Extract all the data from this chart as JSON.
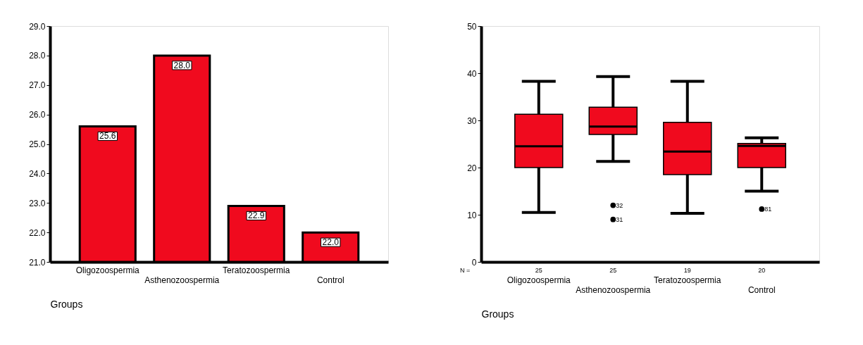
{
  "chart_data": [
    {
      "type": "bar",
      "xlabel": "Groups",
      "categories": [
        "Oligozoospermia",
        "Asthenozoospermia",
        "Teratozoospermia",
        "Control"
      ],
      "values": [
        25.6,
        28.0,
        22.9,
        22.0
      ],
      "color": "#f00a1e",
      "value_labels": [
        "25.6",
        "28.0",
        "22.9",
        "22.0"
      ],
      "ylim": [
        21,
        29
      ],
      "yticks": [
        {
          "value": 21,
          "label": "21.0"
        },
        {
          "value": 22,
          "label": "22.0"
        },
        {
          "value": 23,
          "label": "23.0"
        },
        {
          "value": 24,
          "label": "24.0"
        },
        {
          "value": 25,
          "label": "25.0"
        },
        {
          "value": 26,
          "label": "26.0"
        },
        {
          "value": 27,
          "label": "27.0"
        },
        {
          "value": 28,
          "label": "28.0"
        },
        {
          "value": 29,
          "label": "29.0"
        }
      ],
      "grid": false
    },
    {
      "type": "box",
      "xlabel": "Groups",
      "categories": [
        "Oligozoospermia",
        "Asthenozoospermia",
        "Teratozoospermia",
        "Control"
      ],
      "color": "#f00a1e",
      "boxes": [
        {
          "low": 10.5,
          "q1": 20.0,
          "median": 24.5,
          "q3": 31.3,
          "high": 38.3
        },
        {
          "low": 21.3,
          "q1": 27.0,
          "median": 28.7,
          "q3": 32.8,
          "high": 39.3,
          "outliers": [
            12.0,
            9.0
          ]
        },
        {
          "low": 10.3,
          "q1": 18.5,
          "median": 23.4,
          "q3": 29.6,
          "high": 38.3
        },
        {
          "low": 15.0,
          "q1": 20.0,
          "median": 24.6,
          "q3": 25.1,
          "high": 26.3,
          "outliers": [
            11.2
          ]
        }
      ],
      "ylim": [
        0,
        50
      ],
      "yticks": [
        0,
        10,
        20,
        30,
        40,
        50
      ],
      "grid": false,
      "annotations": [
        "N =",
        "25",
        "25",
        "19",
        "20",
        "32",
        "31",
        "81"
      ]
    }
  ]
}
